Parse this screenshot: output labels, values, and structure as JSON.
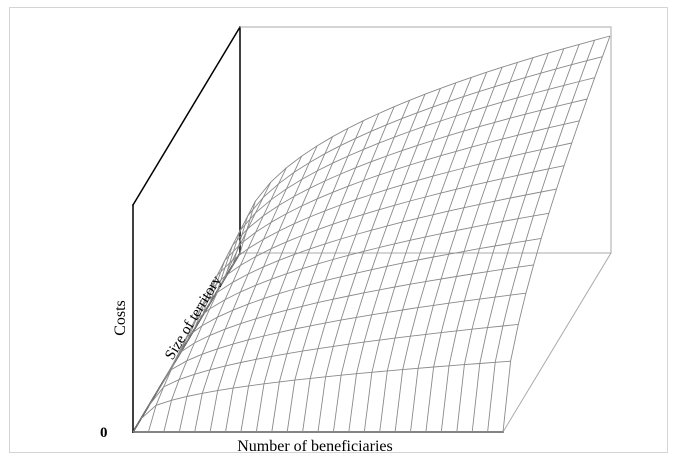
{
  "chart_data": {
    "type": "surface",
    "title": "",
    "xlabel": "Number of beneficiaries",
    "ylabel": "Costs",
    "zlabel": "Size of territory",
    "origin_label": "0",
    "grid": true,
    "surface": {
      "x_steps": 24,
      "y_steps": 14,
      "shape": "concave increasing",
      "exponent_beneficiaries": 0.45,
      "exponent_territory": 0.5
    }
  }
}
